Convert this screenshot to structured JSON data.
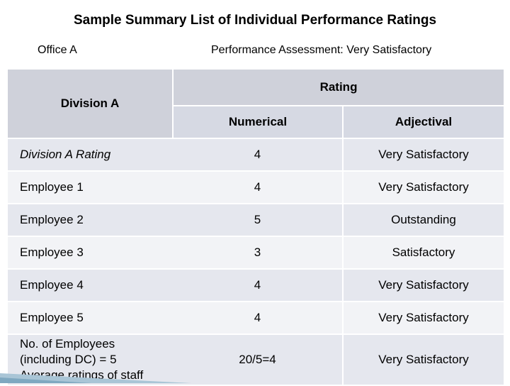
{
  "title": "Sample Summary List of Individual Performance Ratings",
  "office": "Office A",
  "assessment": "Performance Assessment: Very Satisfactory",
  "table": {
    "division_header": "Division A",
    "rating_header": "Rating",
    "numerical_header": "Numerical",
    "adjectival_header": "Adjectival",
    "rows": [
      {
        "label": "Division A Rating",
        "numerical": "4",
        "adjectival": "Very Satisfactory"
      },
      {
        "label": "Employee 1",
        "numerical": "4",
        "adjectival": "Very Satisfactory"
      },
      {
        "label": "Employee 2",
        "numerical": "5",
        "adjectival": "Outstanding"
      },
      {
        "label": "Employee 3",
        "numerical": "3",
        "adjectival": "Satisfactory"
      },
      {
        "label": "Employee 4",
        "numerical": "4",
        "adjectival": "Very Satisfactory"
      },
      {
        "label": "Employee 5",
        "numerical": "4",
        "adjectival": "Very Satisfactory"
      }
    ],
    "summary": {
      "label_lines": [
        "No. of Employees",
        "(including DC) = 5",
        "Average ratings of staff"
      ],
      "numerical": "20/5=4",
      "adjectival": "Very Satisfactory"
    }
  },
  "colors": {
    "header": "#cfd1da",
    "band": "#e5e7ee",
    "plain": "#f2f3f6"
  }
}
